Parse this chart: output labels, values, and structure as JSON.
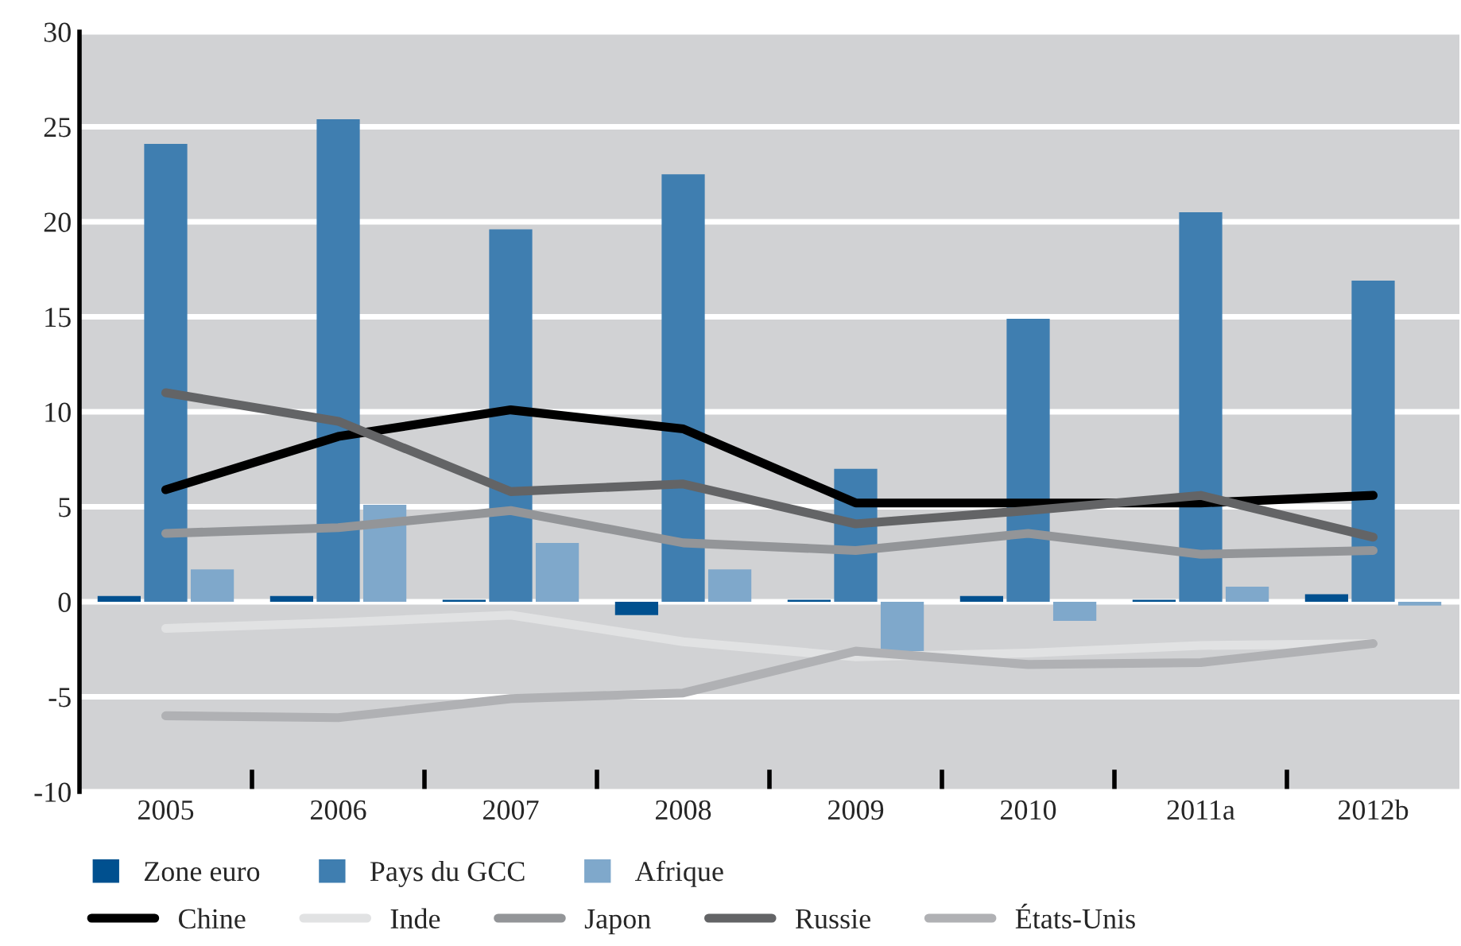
{
  "chart_data": {
    "type": "bar",
    "categories": [
      "2005",
      "2006",
      "2007",
      "2008",
      "2009",
      "2010",
      "2011a",
      "2012b"
    ],
    "series": [
      {
        "name": "Zone euro",
        "color": "#00508f",
        "values": [
          0.3,
          0.3,
          0.1,
          -0.7,
          0.1,
          0.3,
          0.1,
          0.4
        ]
      },
      {
        "name": "Pays du GCC",
        "color": "#3f7eb0",
        "values": [
          24.1,
          25.4,
          19.6,
          22.5,
          7.0,
          14.9,
          20.5,
          16.9
        ]
      },
      {
        "name": "Afrique",
        "color": "#7fa8cb",
        "values": [
          1.7,
          5.1,
          3.1,
          1.7,
          -2.6,
          -1.0,
          0.8,
          -0.2
        ]
      },
      {
        "name": "Chine",
        "type": "line",
        "color": "#000000",
        "values": [
          5.9,
          8.7,
          10.1,
          9.1,
          5.2,
          5.2,
          5.2,
          5.6
        ]
      },
      {
        "name": "Inde",
        "type": "line",
        "color": "#e1e2e3",
        "values": [
          -1.4,
          -1.1,
          -0.7,
          -2.1,
          -2.9,
          -2.7,
          -2.3,
          -2.2
        ]
      },
      {
        "name": "Japon",
        "type": "line",
        "color": "#939598",
        "values": [
          3.6,
          3.9,
          4.8,
          3.1,
          2.7,
          3.6,
          2.5,
          2.7
        ]
      },
      {
        "name": "Russie",
        "type": "line",
        "color": "#636466",
        "values": [
          11.0,
          9.5,
          5.8,
          6.2,
          4.1,
          4.8,
          5.6,
          3.4
        ]
      },
      {
        "name": "États-Unis",
        "type": "line",
        "color": "#b0b1b4",
        "values": [
          -6.0,
          -6.1,
          -5.1,
          -4.8,
          -2.6,
          -3.3,
          -3.2,
          -2.2
        ]
      }
    ],
    "ylim": [
      -10,
      30
    ],
    "yticks": [
      -10,
      -5,
      0,
      5,
      10,
      15,
      20,
      25,
      30
    ],
    "grid": "y",
    "legend": "bottom"
  }
}
